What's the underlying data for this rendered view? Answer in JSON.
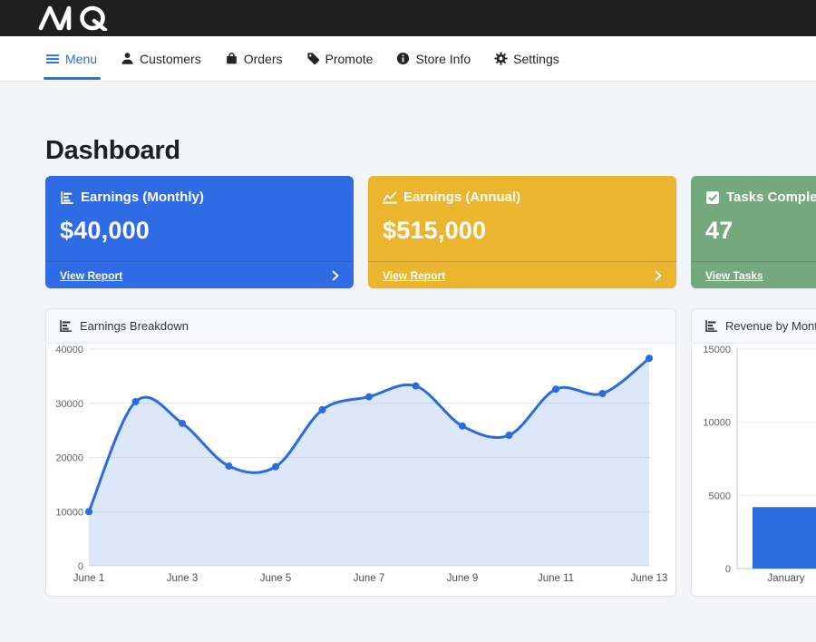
{
  "topbar": {
    "logo_text": "MQ"
  },
  "nav": {
    "active_color": "#2a6fe3",
    "items": [
      {
        "label": "Menu",
        "icon": "hamburger-icon",
        "active": true
      },
      {
        "label": "Customers",
        "icon": "person-icon",
        "active": false
      },
      {
        "label": "Orders",
        "icon": "shopping-bag-icon",
        "active": false
      },
      {
        "label": "Promote",
        "icon": "tag-icon",
        "active": false
      },
      {
        "label": "Store Info",
        "icon": "info-circle-icon",
        "active": false
      },
      {
        "label": "Settings",
        "icon": "gear-icon",
        "active": false
      }
    ]
  },
  "page": {
    "title": "Dashboard"
  },
  "cards": [
    {
      "title": "Earnings (Monthly)",
      "value": "$40,000",
      "link": "View Report",
      "color": "#2e6be4",
      "icon": "bar-chart-icon"
    },
    {
      "title": "Earnings (Annual)",
      "value": "$515,000",
      "link": "View Report",
      "color": "#ecb52f",
      "icon": "line-chart-icon"
    },
    {
      "title": "Tasks Completed",
      "value": "47",
      "link": "View Tasks",
      "color": "#74a87d",
      "icon": "check-square-icon"
    }
  ],
  "colors": {
    "topbar_bg": "#1f1f20",
    "page_bg": "#f4f5f9",
    "chart_line": "#2b6be0",
    "chart_fill": "#dde7fa",
    "card_blue": "#2e6be4",
    "card_yellow": "#ecb52f",
    "card_green": "#74a87d"
  },
  "chart_data": [
    {
      "type": "area",
      "title": "Earnings Breakdown",
      "x": [
        "June 1",
        "June 2",
        "June 3",
        "June 4",
        "June 5",
        "June 6",
        "June 7",
        "June 8",
        "June 9",
        "June 10",
        "June 11",
        "June 12",
        "June 13"
      ],
      "values": [
        10000,
        30300,
        26300,
        18400,
        18300,
        28800,
        31200,
        33200,
        25800,
        24100,
        32600,
        31800,
        38300
      ],
      "xtick_labels": [
        "June 1",
        "June 3",
        "June 5",
        "June 7",
        "June 9",
        "June 11",
        "June 13"
      ],
      "yticks": [
        0,
        10000,
        20000,
        30000,
        40000
      ],
      "ylim": [
        0,
        40000
      ],
      "grid": "horizontal-only",
      "legend": "none",
      "line_color": "#2b6be0",
      "point_color": "#2b6be0",
      "fill_color": "#2b6be0",
      "fill_opacity": 0.16
    },
    {
      "type": "bar",
      "title": "Revenue by Month",
      "categories": [
        "January"
      ],
      "values": [
        4200
      ],
      "yticks": [
        0,
        5000,
        10000,
        15000
      ],
      "ylim": [
        0,
        15000
      ],
      "grid": "horizontal-only",
      "legend": "none",
      "bar_color": "#2b6be0",
      "note": "panel truncated at right viewport edge"
    }
  ]
}
